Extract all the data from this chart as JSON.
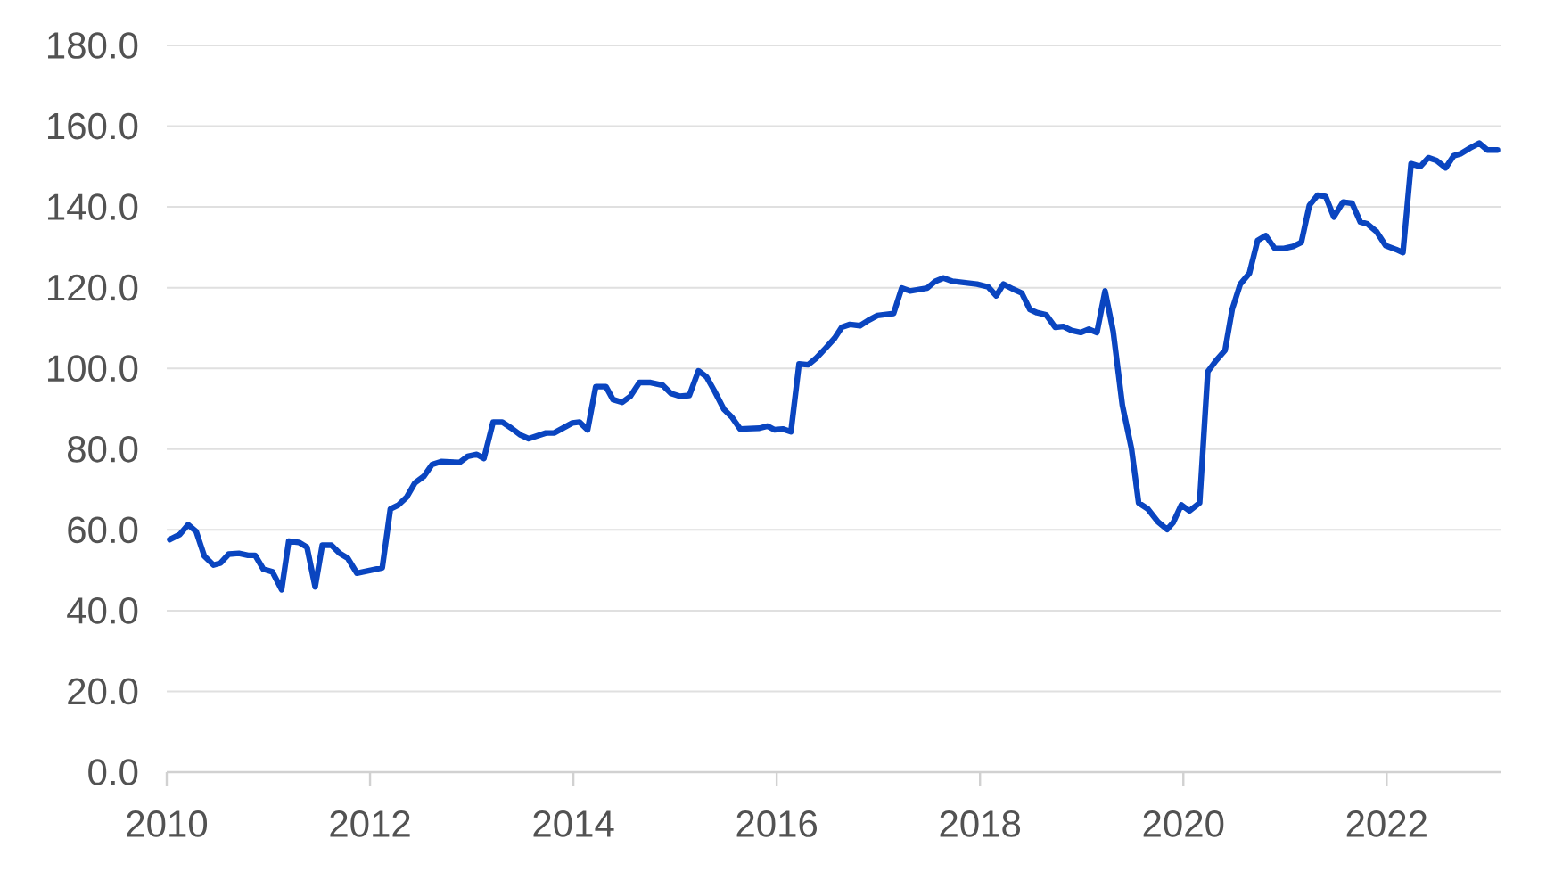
{
  "chart_data": {
    "type": "line",
    "grid": "y",
    "xlim": [
      2010,
      2023.12
    ],
    "ylim": [
      0,
      180
    ],
    "xticks": [
      2010,
      2012,
      2014,
      2016,
      2018,
      2020,
      2022
    ],
    "yticks": [
      {
        "value": 0,
        "label": "0.0"
      },
      {
        "value": 20,
        "label": "20.0"
      },
      {
        "value": 40,
        "label": "40.0"
      },
      {
        "value": 60,
        "label": "60.0"
      },
      {
        "value": 80,
        "label": "80.0"
      },
      {
        "value": 100,
        "label": "100.0"
      },
      {
        "value": 120,
        "label": "120.0"
      },
      {
        "value": 140,
        "label": "140.0"
      },
      {
        "value": 160,
        "label": "160.0"
      },
      {
        "value": 180,
        "label": "180.0"
      }
    ],
    "series": [
      {
        "color": "#0a45c0",
        "line_style": "solid",
        "x": [
          2010.03,
          2010.13,
          2010.21,
          2010.29,
          2010.37,
          2010.46,
          2010.53,
          2010.61,
          2010.71,
          2010.8,
          2010.87,
          2010.95,
          2011.04,
          2011.13,
          2011.2,
          2011.3,
          2011.38,
          2011.46,
          2011.53,
          2011.62,
          2011.7,
          2011.78,
          2011.87,
          2012.12,
          2012.2,
          2012.28,
          2012.36,
          2012.44,
          2012.53,
          2012.61,
          2012.7,
          2012.88,
          2012.96,
          2013.05,
          2013.12,
          2013.21,
          2013.3,
          2013.39,
          2013.48,
          2013.56,
          2013.73,
          2013.81,
          2013.99,
          2014.06,
          2014.14,
          2014.22,
          2014.32,
          2014.39,
          2014.48,
          2014.56,
          2014.65,
          2014.76,
          2014.88,
          2014.96,
          2015.05,
          2015.14,
          2015.23,
          2015.31,
          2015.39,
          2015.48,
          2015.56,
          2015.64,
          2015.83,
          2015.91,
          2015.98,
          2016.06,
          2016.14,
          2016.22,
          2016.31,
          2016.39,
          2016.48,
          2016.57,
          2016.64,
          2016.72,
          2016.82,
          2016.9,
          2016.99,
          2017.15,
          2017.23,
          2017.31,
          2017.48,
          2017.56,
          2017.64,
          2017.73,
          2017.97,
          2018.08,
          2018.16,
          2018.23,
          2018.32,
          2018.41,
          2018.49,
          2018.56,
          2018.65,
          2018.74,
          2018.82,
          2018.9,
          2018.99,
          2019.07,
          2019.15,
          2019.23,
          2019.31,
          2019.4,
          2019.49,
          2019.56,
          2019.65,
          2019.75,
          2019.84,
          2019.9,
          2019.98,
          2020.06,
          2020.16,
          2020.24,
          2020.32,
          2020.41,
          2020.48,
          2020.56,
          2020.65,
          2020.73,
          2020.81,
          2020.9,
          2020.99,
          2021.08,
          2021.16,
          2021.24,
          2021.32,
          2021.4,
          2021.48,
          2021.57,
          2021.66,
          2021.74,
          2021.81,
          2021.9,
          2021.99,
          2022.09,
          2022.16,
          2022.24,
          2022.33,
          2022.41,
          2022.49,
          2022.58,
          2022.66,
          2022.73,
          2022.82,
          2022.91,
          2022.99,
          2023.09
        ],
        "values": [
          57.6,
          58.9,
          61.3,
          59.6,
          53.5,
          51.3,
          51.8,
          54.0,
          54.2,
          53.7,
          53.7,
          50.3,
          49.6,
          45.2,
          57.2,
          56.9,
          55.7,
          45.9,
          56.2,
          56.2,
          54.2,
          53.0,
          49.3,
          50.6,
          65.2,
          66.2,
          68.1,
          71.6,
          73.3,
          76.2,
          76.9,
          76.7,
          78.2,
          78.7,
          77.7,
          86.7,
          86.7,
          85.2,
          83.5,
          82.6,
          84.0,
          84.0,
          86.5,
          86.7,
          84.8,
          95.5,
          95.5,
          92.3,
          91.6,
          93.1,
          96.5,
          96.5,
          95.8,
          93.8,
          93.1,
          93.3,
          99.4,
          97.9,
          94.3,
          89.9,
          87.9,
          85.0,
          85.2,
          85.7,
          84.8,
          85.0,
          84.3,
          101.1,
          100.9,
          102.6,
          105.0,
          107.5,
          110.2,
          110.9,
          110.6,
          111.9,
          113.1,
          113.6,
          119.9,
          119.2,
          119.9,
          121.6,
          122.4,
          121.6,
          120.9,
          120.2,
          118.0,
          120.9,
          119.7,
          118.7,
          114.6,
          113.8,
          113.3,
          110.2,
          110.4,
          109.4,
          108.9,
          109.7,
          108.9,
          119.2,
          109.2,
          90.9,
          80.1,
          66.7,
          65.2,
          62.0,
          60.1,
          61.8,
          66.2,
          64.7,
          66.7,
          99.2,
          101.9,
          104.5,
          114.6,
          120.9,
          123.6,
          131.7,
          132.9,
          129.7,
          129.7,
          130.2,
          131.2,
          140.4,
          142.9,
          142.6,
          137.5,
          141.2,
          140.9,
          136.3,
          135.8,
          133.9,
          130.4,
          129.5,
          128.7,
          150.7,
          150.0,
          152.2,
          151.5,
          149.7,
          152.7,
          153.2,
          154.6,
          155.8,
          154.1,
          154.1
        ]
      }
    ]
  }
}
